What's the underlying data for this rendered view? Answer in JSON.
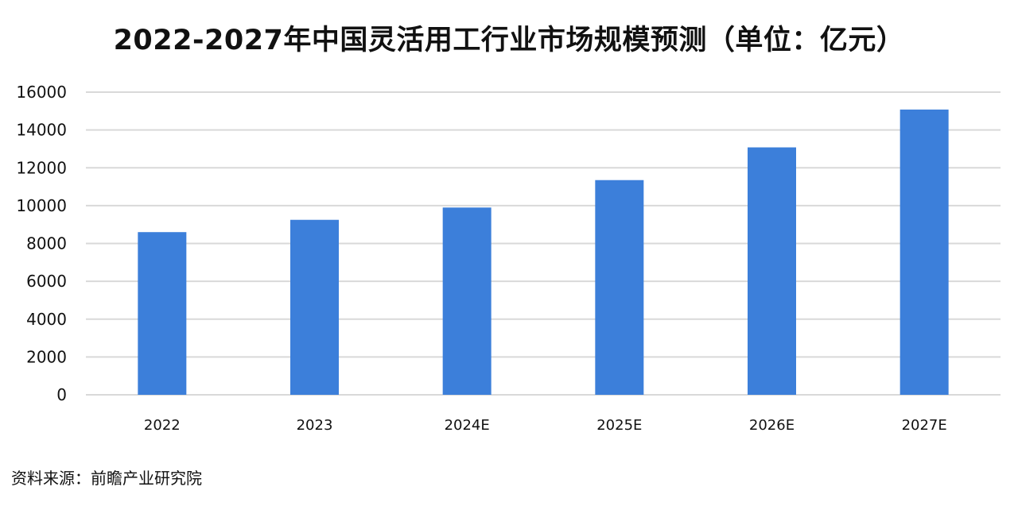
{
  "chart_data": {
    "type": "bar",
    "title": "2022-2027年中国灵活用工行业市场规模预测（单位：亿元）",
    "xlabel": "",
    "ylabel": "",
    "categories": [
      "2022",
      "2023",
      "2024E",
      "2025E",
      "2026E",
      "2027E"
    ],
    "values": [
      8600,
      9250,
      9900,
      11350,
      13080,
      15080
    ],
    "ylim": [
      0,
      16000
    ],
    "yticks": [
      0,
      2000,
      4000,
      6000,
      8000,
      10000,
      12000,
      14000,
      16000
    ],
    "grid": true,
    "legend": "none"
  },
  "source": "资料来源：前瞻产业研究院",
  "colors": {
    "bar": "#3c7fda",
    "grid": "#d9d9d9",
    "text": "#111111"
  }
}
